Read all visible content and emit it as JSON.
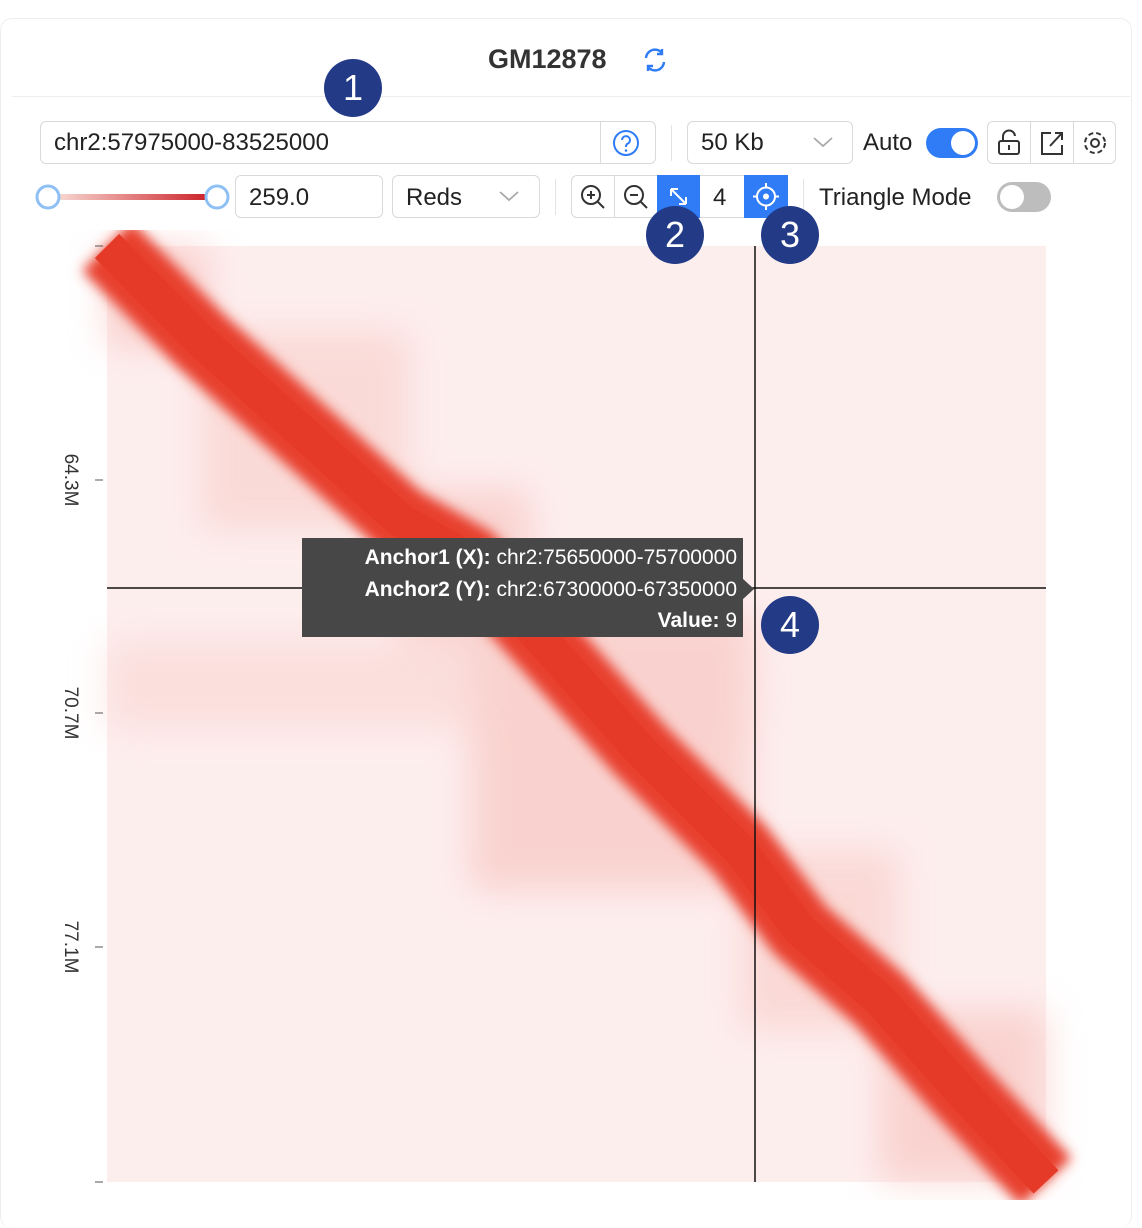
{
  "header": {
    "title": "GM12878"
  },
  "toolbar": {
    "region": "chr2:57975000-83525000",
    "resolution": "50 Kb",
    "auto_label": "Auto",
    "max_value": "259.0",
    "colormap": "Reds",
    "zoom_step": "4",
    "triangle_mode_label": "Triangle Mode"
  },
  "heatmap": {
    "y_ticks": [
      "64.3M",
      "70.7M",
      "77.1M"
    ]
  },
  "tooltip": {
    "anchor1_label": "Anchor1 (X):",
    "anchor1_value": "chr2:75650000-75700000",
    "anchor2_label": "Anchor2 (Y):",
    "anchor2_value": "chr2:67300000-67350000",
    "value_label": "Value:",
    "value": "9"
  },
  "callouts": [
    "1",
    "2",
    "3",
    "4"
  ]
}
